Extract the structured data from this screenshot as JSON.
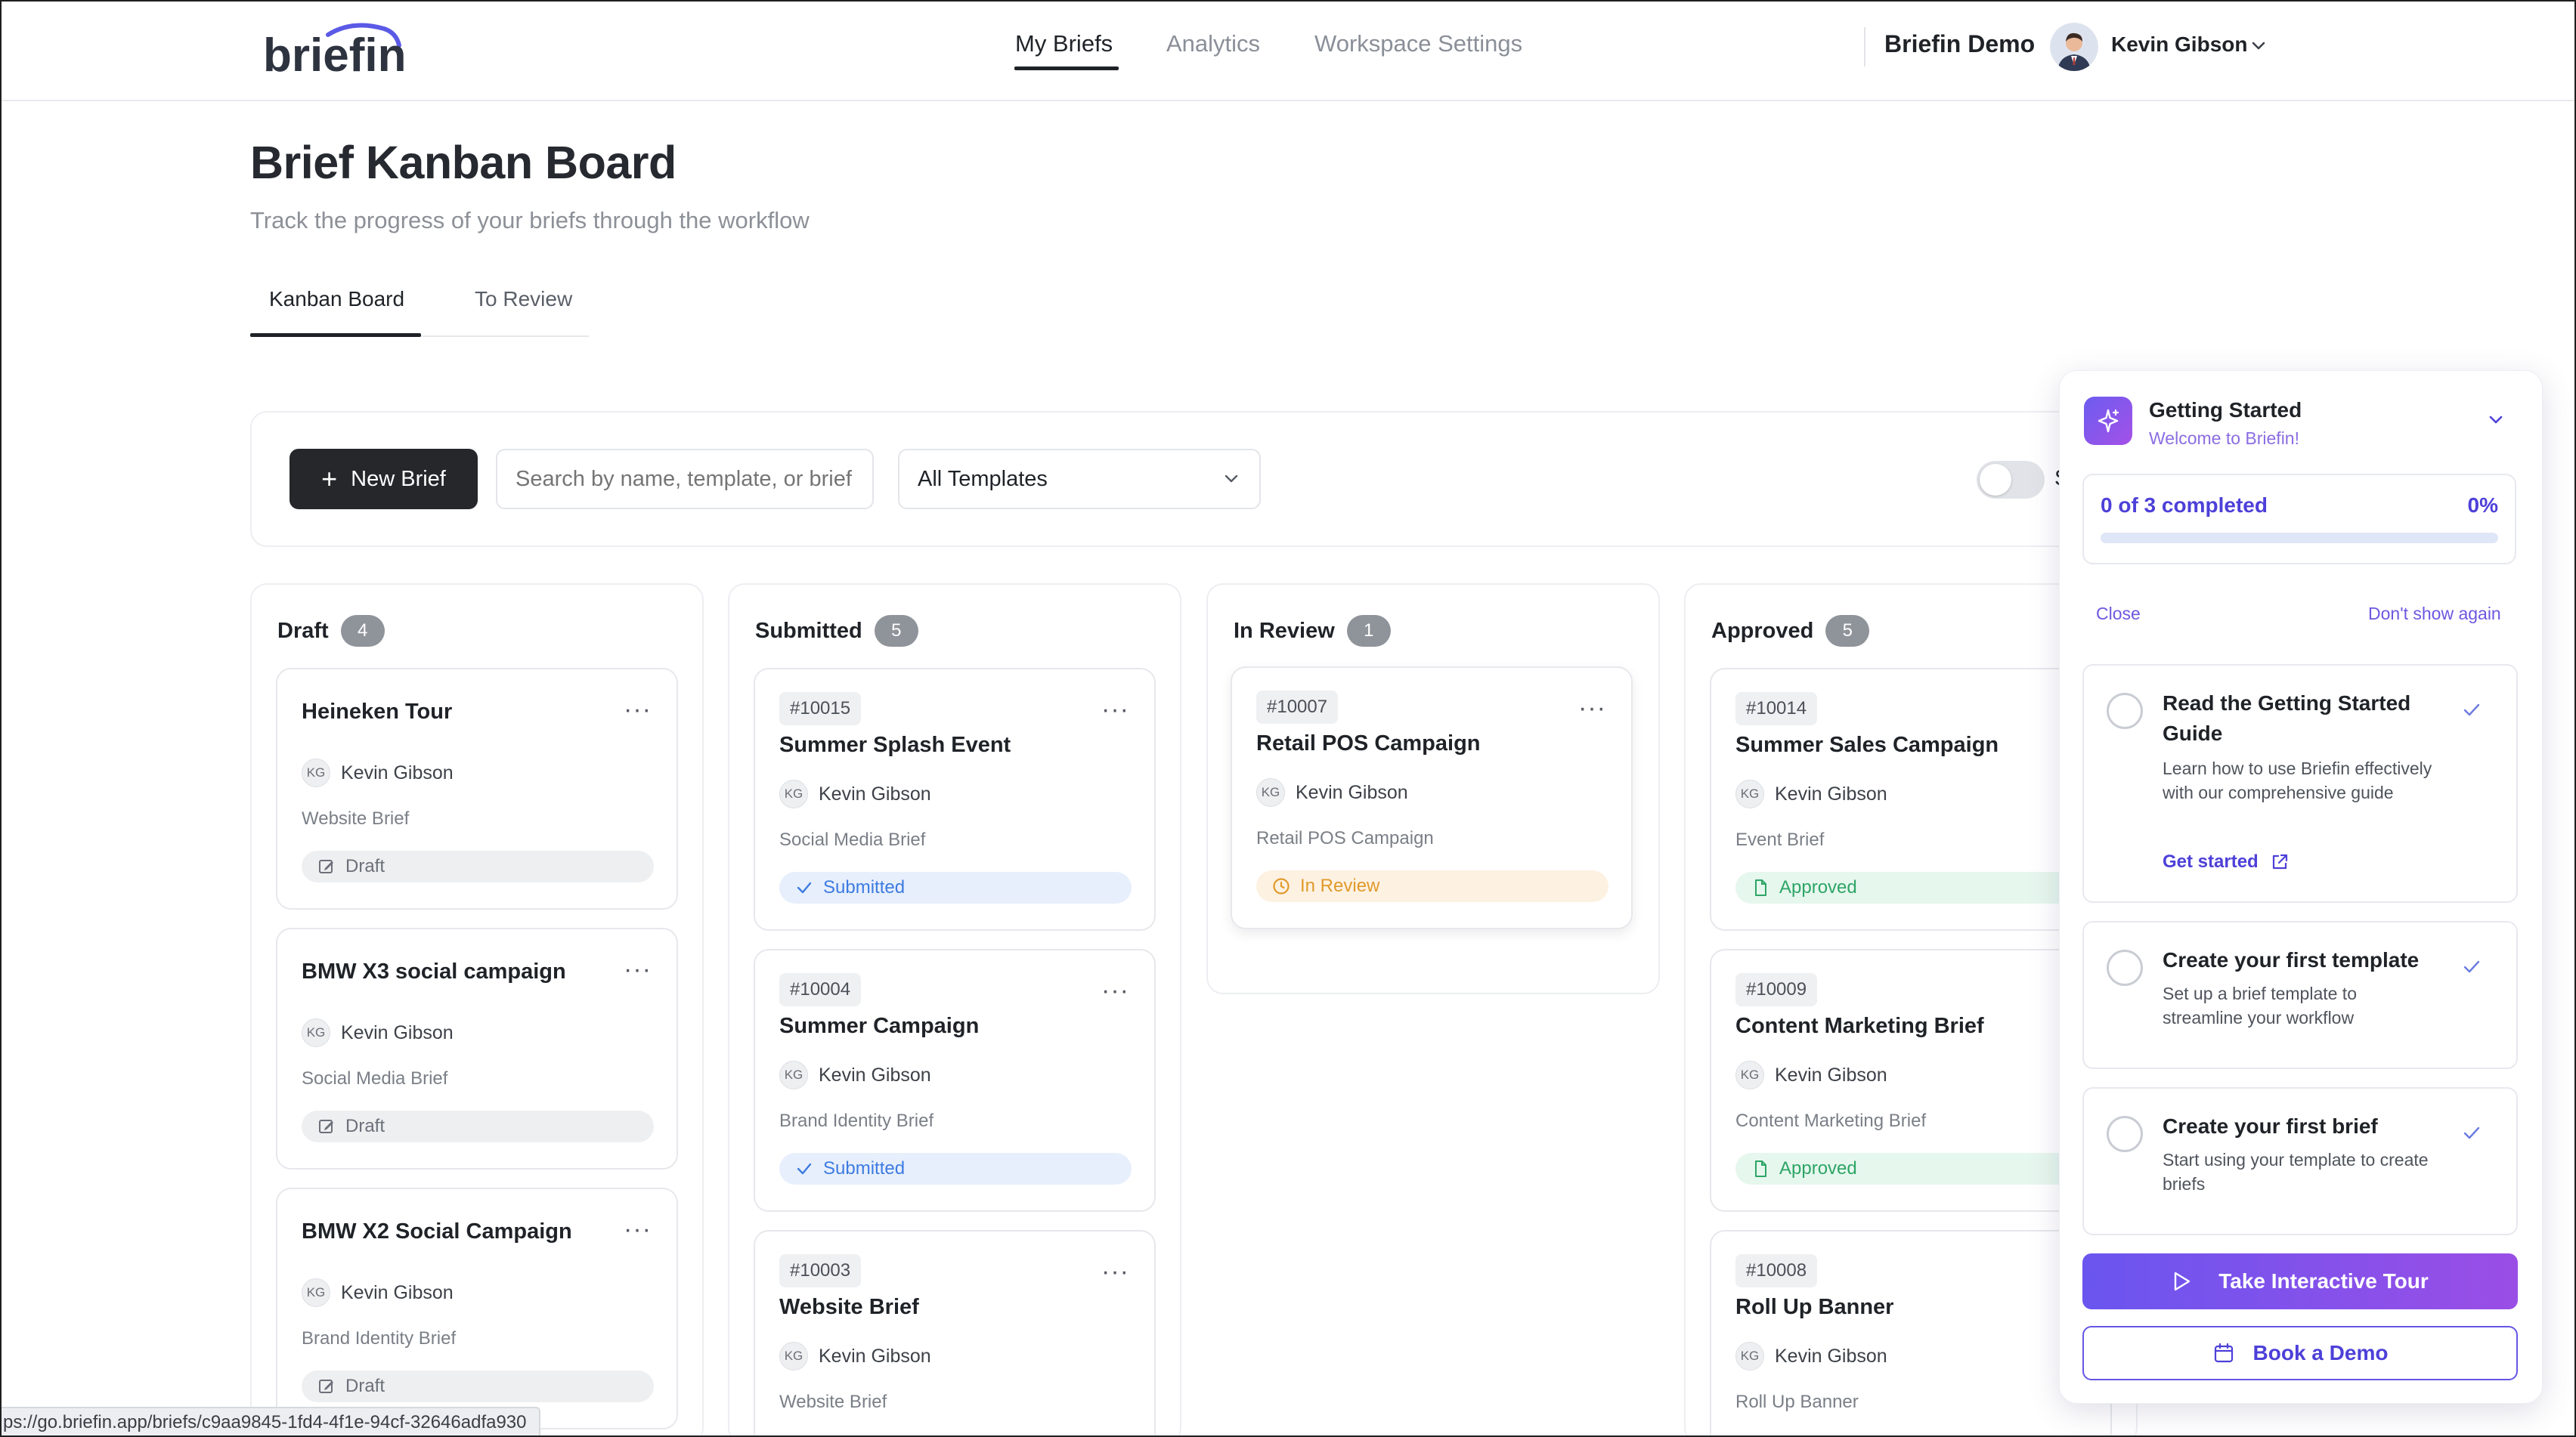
{
  "header": {
    "logo_text": "briefin",
    "nav": [
      {
        "label": "My Briefs"
      },
      {
        "label": "Analytics"
      },
      {
        "label": "Workspace Settings"
      }
    ],
    "workspace": "Briefin Demo",
    "user": "Kevin Gibson"
  },
  "page": {
    "title": "Brief Kanban Board",
    "subtitle": "Track the progress of your briefs through the workflow",
    "tabs": [
      {
        "label": "Kanban Board"
      },
      {
        "label": "To Review"
      }
    ]
  },
  "toolbar": {
    "new_brief": "New Brief",
    "search_placeholder": "Search by name, template, or brief n",
    "template_select": "All Templates",
    "toggle_label": "S"
  },
  "columns": [
    {
      "title": "Draft",
      "count": "4",
      "cards": [
        {
          "id": "",
          "title": "Heineken Tour",
          "owner_initials": "KG",
          "owner": "Kevin Gibson",
          "type": "Website Brief",
          "status": "Draft"
        },
        {
          "id": "",
          "title": "BMW X3 social campaign",
          "owner_initials": "KG",
          "owner": "Kevin Gibson",
          "type": "Social Media Brief",
          "status": "Draft"
        },
        {
          "id": "",
          "title": "BMW X2 Social Campaign",
          "owner_initials": "KG",
          "owner": "Kevin Gibson",
          "type": "Brand Identity Brief",
          "status": "Draft"
        }
      ]
    },
    {
      "title": "Submitted",
      "count": "5",
      "cards": [
        {
          "id": "#10015",
          "title": "Summer Splash Event",
          "owner_initials": "KG",
          "owner": "Kevin Gibson",
          "type": "Social Media Brief",
          "status": "Submitted"
        },
        {
          "id": "#10004",
          "title": "Summer Campaign",
          "owner_initials": "KG",
          "owner": "Kevin Gibson",
          "type": "Brand Identity Brief",
          "status": "Submitted"
        },
        {
          "id": "#10003",
          "title": "Website Brief",
          "owner_initials": "KG",
          "owner": "Kevin Gibson",
          "type": "Website Brief",
          "status": ""
        }
      ]
    },
    {
      "title": "In Review",
      "count": "1",
      "cards": [
        {
          "id": "#10007",
          "title": "Retail POS Campaign",
          "owner_initials": "KG",
          "owner": "Kevin Gibson",
          "type": "Retail POS Campaign",
          "status": "In Review"
        }
      ]
    },
    {
      "title": "Approved",
      "count": "5",
      "cards": [
        {
          "id": "#10014",
          "title": "Summer Sales Campaign",
          "owner_initials": "KG",
          "owner": "Kevin Gibson",
          "type": "Event Brief",
          "status": "Approved"
        },
        {
          "id": "#10009",
          "title": "Content Marketing Brief",
          "owner_initials": "KG",
          "owner": "Kevin Gibson",
          "type": "Content Marketing Brief",
          "status": "Approved"
        },
        {
          "id": "#10008",
          "title": "Roll Up Banner",
          "owner_initials": "KG",
          "owner": "Kevin Gibson",
          "type": "Roll Up Banner",
          "status": ""
        }
      ]
    }
  ],
  "getting_started": {
    "title": "Getting Started",
    "subtitle": "Welcome to Briefin!",
    "progress_text": "0 of 3 completed",
    "progress_percent": "0%",
    "progress_value": 0,
    "close": "Close",
    "dont_show": "Don't show again",
    "tasks": [
      {
        "title": "Read the Getting Started Guide",
        "description": "Learn how to use Briefin effectively with our comprehensive guide",
        "link": "Get started"
      },
      {
        "title": "Create your first template",
        "description": "Set up a brief template to streamline your workflow"
      },
      {
        "title": "Create your first brief",
        "description": "Start using your template to create briefs"
      }
    ],
    "tour_button": "Take Interactive Tour",
    "demo_button": "Book a Demo"
  },
  "status_bar": {
    "url": "ps://go.briefin.app/briefs/c9aa9845-1fd4-4f1e-94cf-32646adfa930"
  },
  "colors": {
    "accent": "#5b47e8",
    "primary_button": "#25272b",
    "submitted": "#3d7be0",
    "in_review": "#e09a2a",
    "approved": "#2da565"
  }
}
